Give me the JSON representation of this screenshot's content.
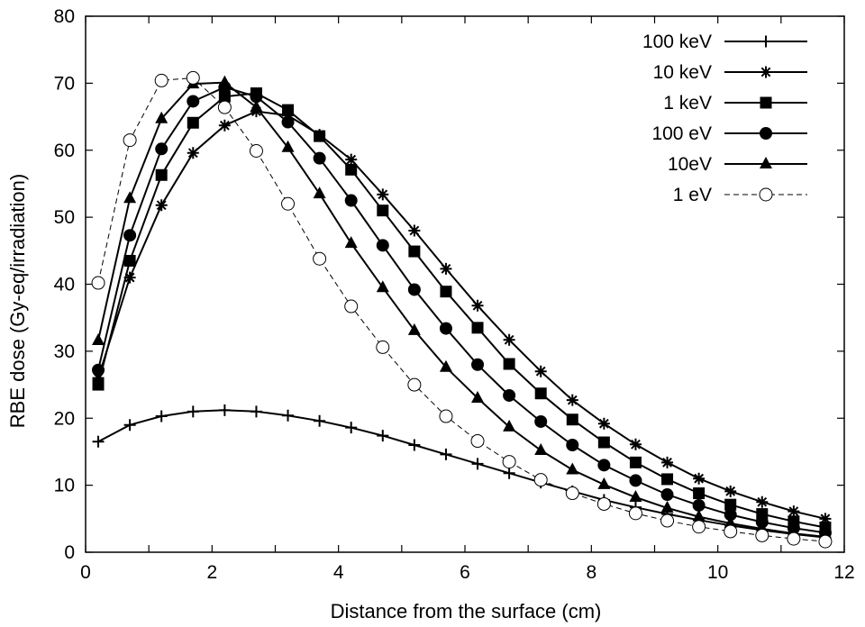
{
  "chart_data": {
    "type": "line",
    "title": "",
    "xlabel": "Distance from the surface (cm)",
    "ylabel": "RBE dose (Gy-eq/irradiation)",
    "xlim": [
      0,
      12
    ],
    "ylim": [
      0,
      80
    ],
    "xticks": [
      "0",
      "2",
      "4",
      "6",
      "8",
      "10",
      "12"
    ],
    "yticks": [
      "0",
      "10",
      "20",
      "30",
      "40",
      "50",
      "60",
      "70",
      "80"
    ],
    "grid": false,
    "legend_position": "top-right",
    "x": [
      0.2,
      0.7,
      1.2,
      1.7,
      2.2,
      2.7,
      3.2,
      3.7,
      4.2,
      4.7,
      5.2,
      5.7,
      6.2,
      6.7,
      7.2,
      7.7,
      8.2,
      8.7,
      9.2,
      9.7,
      10.2,
      10.7,
      11.2,
      11.7
    ],
    "series": [
      {
        "name": "100 keV",
        "marker": "plus",
        "dashed": false,
        "values": [
          16.5,
          19.0,
          20.3,
          21.0,
          21.2,
          21.0,
          20.4,
          19.6,
          18.6,
          17.4,
          16.0,
          14.6,
          13.2,
          11.8,
          10.4,
          9.1,
          7.8,
          6.7,
          5.7,
          4.8,
          4.0,
          3.3,
          2.7,
          2.2
        ]
      },
      {
        "name": "10 keV",
        "marker": "asterisk",
        "dashed": false,
        "values": [
          26.0,
          41.0,
          51.8,
          59.6,
          63.7,
          65.8,
          65.2,
          62.3,
          58.6,
          53.4,
          48.0,
          42.3,
          36.8,
          31.7,
          27.0,
          22.7,
          19.2,
          16.1,
          13.4,
          11.0,
          9.1,
          7.5,
          6.1,
          5.0
        ]
      },
      {
        "name": "1 keV",
        "marker": "square",
        "dashed": false,
        "values": [
          25.0,
          43.5,
          56.3,
          64.1,
          68.0,
          68.5,
          66.0,
          62.1,
          57.1,
          51.0,
          44.9,
          38.9,
          33.5,
          28.1,
          23.7,
          19.8,
          16.4,
          13.4,
          10.9,
          8.8,
          7.1,
          5.7,
          4.6,
          3.7
        ]
      },
      {
        "name": "100 eV",
        "marker": "circle",
        "dashed": false,
        "values": [
          27.2,
          47.3,
          60.2,
          67.3,
          69.4,
          68.0,
          64.2,
          58.8,
          52.5,
          45.8,
          39.2,
          33.4,
          28.0,
          23.4,
          19.5,
          16.0,
          13.0,
          10.7,
          8.6,
          7.0,
          5.6,
          4.5,
          3.6,
          2.9
        ]
      },
      {
        "name": "10eV",
        "marker": "triangle",
        "dashed": false,
        "values": [
          31.6,
          52.8,
          64.7,
          69.9,
          70.1,
          66.4,
          60.4,
          53.5,
          46.1,
          39.5,
          33.1,
          27.6,
          23.0,
          18.7,
          15.2,
          12.3,
          10.1,
          8.2,
          6.6,
          5.3,
          4.3,
          3.5,
          2.8,
          2.3
        ]
      },
      {
        "name": "1 eV",
        "marker": "open-circle",
        "dashed": true,
        "values": [
          40.2,
          61.5,
          70.4,
          70.8,
          66.4,
          59.9,
          52.0,
          43.8,
          36.7,
          30.6,
          25.0,
          20.3,
          16.6,
          13.5,
          10.8,
          8.8,
          7.2,
          5.8,
          4.7,
          3.8,
          3.1,
          2.5,
          2.0,
          1.6
        ]
      }
    ]
  }
}
